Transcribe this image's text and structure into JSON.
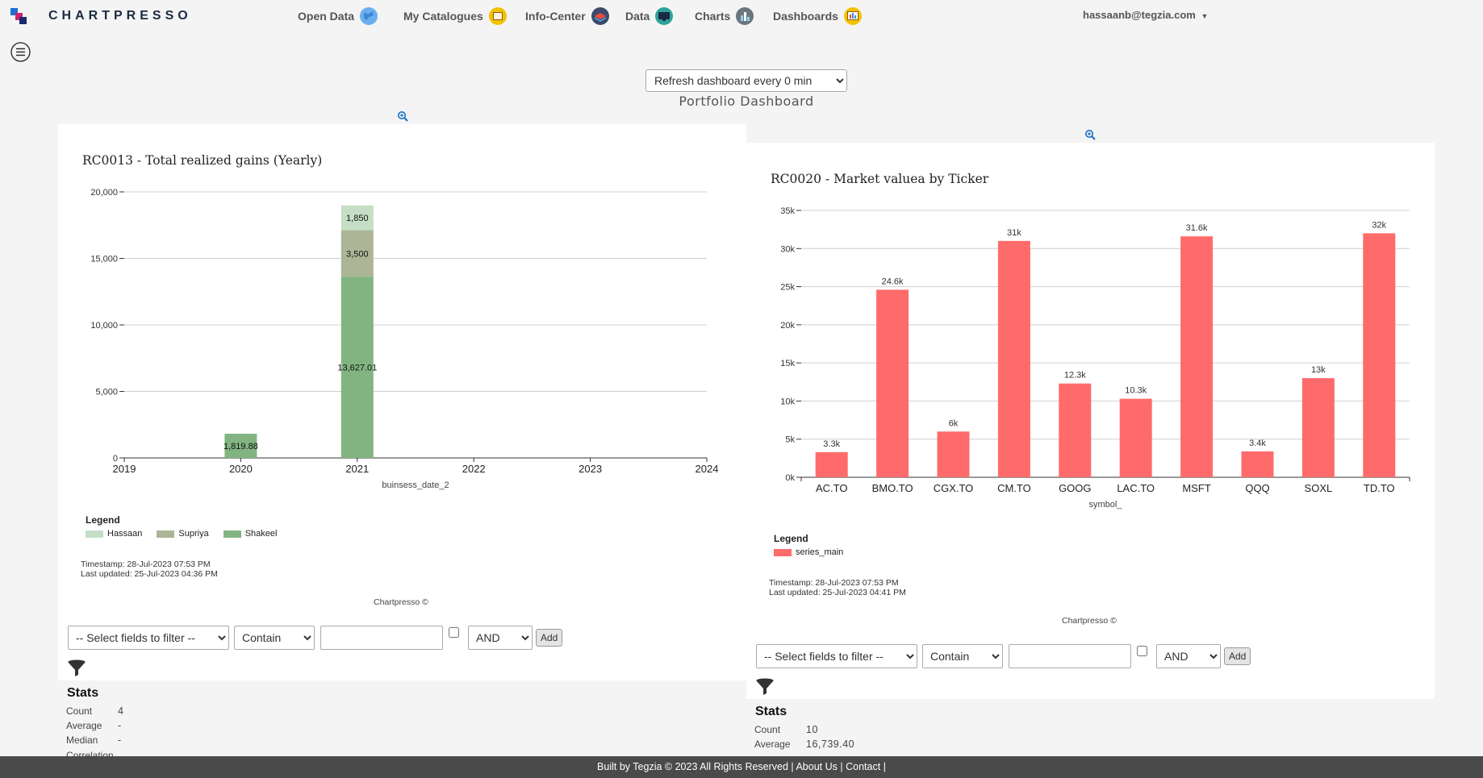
{
  "header": {
    "brand": "CHARTPRESSO",
    "nav": [
      {
        "label": "Open Data",
        "icon": "globe-icon",
        "color": "#4a90d9"
      },
      {
        "label": "My Catalogues",
        "icon": "book-icon",
        "color": "#f2c200"
      },
      {
        "label": "Info-Center",
        "icon": "layers-icon",
        "color": "#3c4b6b"
      },
      {
        "label": "Data",
        "icon": "monitor-icon",
        "color": "#2fa39a"
      },
      {
        "label": "Charts",
        "icon": "bar-chart-icon",
        "color": "#6b7580"
      },
      {
        "label": "Dashboards",
        "icon": "dashboard-icon",
        "color": "#f2c200"
      }
    ],
    "user": "hassaanb@tegzia.com"
  },
  "refresh_select": "Refresh dashboard every 0 min",
  "page_title": "Portfolio Dashboard",
  "left_panel": {
    "title": "RC0013 - Total realized gains (Yearly)",
    "legend_title": "Legend",
    "timestamp": "Timestamp: 28-Jul-2023 07:53 PM",
    "last_updated": "Last updated: 25-Jul-2023 04:36 PM",
    "credit": "Chartpresso ©",
    "filter": {
      "field": "-- Select fields to filter --",
      "op": "Contain",
      "join": "AND",
      "add": "Add"
    },
    "stats": {
      "title": "Stats",
      "rows": [
        {
          "label": "Count",
          "value": "4"
        },
        {
          "label": "Average",
          "value": "-"
        },
        {
          "label": "Median",
          "value": "-"
        },
        {
          "label": "Correlation",
          "value": ""
        }
      ]
    }
  },
  "right_panel": {
    "title": "RC0020 - Market valuea by Ticker",
    "legend_title": "Legend",
    "timestamp": "Timestamp: 28-Jul-2023 07:53 PM",
    "last_updated": "Last updated: 25-Jul-2023 04:41 PM",
    "credit": "Chartpresso ©",
    "filter": {
      "field": "-- Select fields to filter --",
      "op": "Contain",
      "join": "AND",
      "add": "Add"
    },
    "stats": {
      "title": "Stats",
      "rows": [
        {
          "label": "Count",
          "value": "10"
        },
        {
          "label": "Average",
          "value": "16,739.40"
        }
      ]
    }
  },
  "chart_data": [
    {
      "type": "bar",
      "stacked": true,
      "title": "RC0013 - Total realized gains (Yearly)",
      "xlabel": "buinsess_date_2",
      "ylabel": "",
      "x_ticks": [
        "2019",
        "2020",
        "2021",
        "2022",
        "2023",
        "2024"
      ],
      "y_ticks": [
        "0",
        "5,000",
        "10,000",
        "15,000",
        "20,000"
      ],
      "ylim": [
        0,
        20000
      ],
      "categories": [
        "2020",
        "2021"
      ],
      "series": [
        {
          "name": "Shakeel",
          "color": "#82b482",
          "values": [
            1819.88,
            13627.01
          ],
          "labels": [
            "1,819.88",
            "13,627.01"
          ]
        },
        {
          "name": "Supriya",
          "color": "#adb597",
          "values": [
            0,
            3500
          ],
          "labels": [
            "",
            "3,500"
          ]
        },
        {
          "name": "Hassaan",
          "color": "#c5dec5",
          "values": [
            0,
            1850
          ],
          "labels": [
            "",
            "1,850"
          ]
        }
      ],
      "legend_order": [
        "Hassaan",
        "Supriya",
        "Shakeel"
      ],
      "grid": true,
      "legend_position": "bottom-left"
    },
    {
      "type": "bar",
      "title": "RC0020 - Market valuea by Ticker",
      "xlabel": "symbol_",
      "ylabel": "",
      "y_ticks": [
        "0k",
        "5k",
        "10k",
        "15k",
        "20k",
        "25k",
        "30k",
        "35k"
      ],
      "ylim": [
        0,
        35000
      ],
      "categories": [
        "AC.TO",
        "BMO.TO",
        "CGX.TO",
        "CM.TO",
        "GOOG",
        "LAC.TO",
        "MSFT",
        "QQQ",
        "SOXL",
        "TD.TO"
      ],
      "series": [
        {
          "name": "series_main",
          "color": "#ff6b6b",
          "values": [
            3300,
            24600,
            6000,
            31000,
            12300,
            10300,
            31600,
            3400,
            13000,
            32000
          ],
          "labels": [
            "3.3k",
            "24.6k",
            "6k",
            "31k",
            "12.3k",
            "10.3k",
            "31.6k",
            "3.4k",
            "13k",
            "32k"
          ]
        }
      ],
      "grid": true,
      "legend_position": "bottom-left"
    }
  ],
  "footer": {
    "built": "Built by Tegzia",
    "copyright": "© 2023 All Rights Reserved |",
    "about": "About Us",
    "sep": "|",
    "contact": "Contact",
    "end": "|"
  }
}
